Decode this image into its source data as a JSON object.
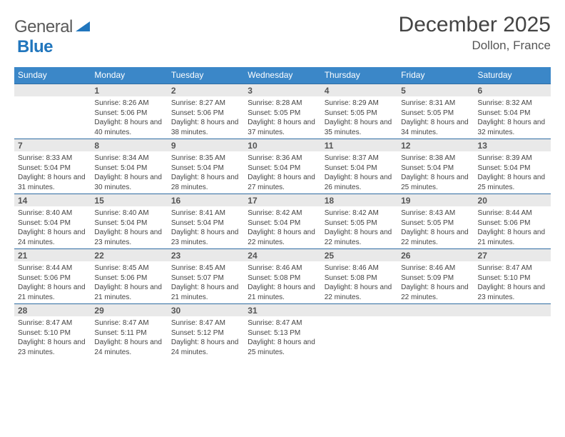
{
  "header": {
    "logo_general": "General",
    "logo_blue": "Blue",
    "month_title": "December 2025",
    "location": "Dollon, France"
  },
  "day_labels": [
    "Sunday",
    "Monday",
    "Tuesday",
    "Wednesday",
    "Thursday",
    "Friday",
    "Saturday"
  ],
  "theme": {
    "header_bg": "#3b87c8",
    "header_fg": "#ffffff",
    "daybar_bg": "#e9e9e9",
    "daybar_border": "#2f6ca3",
    "text_color": "#444444",
    "logo_blue": "#2176bd"
  },
  "weeks": [
    [
      {
        "n": "",
        "sun": "",
        "set": "",
        "day": ""
      },
      {
        "n": "1",
        "sun": "Sunrise: 8:26 AM",
        "set": "Sunset: 5:06 PM",
        "day": "Daylight: 8 hours and 40 minutes."
      },
      {
        "n": "2",
        "sun": "Sunrise: 8:27 AM",
        "set": "Sunset: 5:06 PM",
        "day": "Daylight: 8 hours and 38 minutes."
      },
      {
        "n": "3",
        "sun": "Sunrise: 8:28 AM",
        "set": "Sunset: 5:05 PM",
        "day": "Daylight: 8 hours and 37 minutes."
      },
      {
        "n": "4",
        "sun": "Sunrise: 8:29 AM",
        "set": "Sunset: 5:05 PM",
        "day": "Daylight: 8 hours and 35 minutes."
      },
      {
        "n": "5",
        "sun": "Sunrise: 8:31 AM",
        "set": "Sunset: 5:05 PM",
        "day": "Daylight: 8 hours and 34 minutes."
      },
      {
        "n": "6",
        "sun": "Sunrise: 8:32 AM",
        "set": "Sunset: 5:04 PM",
        "day": "Daylight: 8 hours and 32 minutes."
      }
    ],
    [
      {
        "n": "7",
        "sun": "Sunrise: 8:33 AM",
        "set": "Sunset: 5:04 PM",
        "day": "Daylight: 8 hours and 31 minutes."
      },
      {
        "n": "8",
        "sun": "Sunrise: 8:34 AM",
        "set": "Sunset: 5:04 PM",
        "day": "Daylight: 8 hours and 30 minutes."
      },
      {
        "n": "9",
        "sun": "Sunrise: 8:35 AM",
        "set": "Sunset: 5:04 PM",
        "day": "Daylight: 8 hours and 28 minutes."
      },
      {
        "n": "10",
        "sun": "Sunrise: 8:36 AM",
        "set": "Sunset: 5:04 PM",
        "day": "Daylight: 8 hours and 27 minutes."
      },
      {
        "n": "11",
        "sun": "Sunrise: 8:37 AM",
        "set": "Sunset: 5:04 PM",
        "day": "Daylight: 8 hours and 26 minutes."
      },
      {
        "n": "12",
        "sun": "Sunrise: 8:38 AM",
        "set": "Sunset: 5:04 PM",
        "day": "Daylight: 8 hours and 25 minutes."
      },
      {
        "n": "13",
        "sun": "Sunrise: 8:39 AM",
        "set": "Sunset: 5:04 PM",
        "day": "Daylight: 8 hours and 25 minutes."
      }
    ],
    [
      {
        "n": "14",
        "sun": "Sunrise: 8:40 AM",
        "set": "Sunset: 5:04 PM",
        "day": "Daylight: 8 hours and 24 minutes."
      },
      {
        "n": "15",
        "sun": "Sunrise: 8:40 AM",
        "set": "Sunset: 5:04 PM",
        "day": "Daylight: 8 hours and 23 minutes."
      },
      {
        "n": "16",
        "sun": "Sunrise: 8:41 AM",
        "set": "Sunset: 5:04 PM",
        "day": "Daylight: 8 hours and 23 minutes."
      },
      {
        "n": "17",
        "sun": "Sunrise: 8:42 AM",
        "set": "Sunset: 5:04 PM",
        "day": "Daylight: 8 hours and 22 minutes."
      },
      {
        "n": "18",
        "sun": "Sunrise: 8:42 AM",
        "set": "Sunset: 5:05 PM",
        "day": "Daylight: 8 hours and 22 minutes."
      },
      {
        "n": "19",
        "sun": "Sunrise: 8:43 AM",
        "set": "Sunset: 5:05 PM",
        "day": "Daylight: 8 hours and 22 minutes."
      },
      {
        "n": "20",
        "sun": "Sunrise: 8:44 AM",
        "set": "Sunset: 5:06 PM",
        "day": "Daylight: 8 hours and 21 minutes."
      }
    ],
    [
      {
        "n": "21",
        "sun": "Sunrise: 8:44 AM",
        "set": "Sunset: 5:06 PM",
        "day": "Daylight: 8 hours and 21 minutes."
      },
      {
        "n": "22",
        "sun": "Sunrise: 8:45 AM",
        "set": "Sunset: 5:06 PM",
        "day": "Daylight: 8 hours and 21 minutes."
      },
      {
        "n": "23",
        "sun": "Sunrise: 8:45 AM",
        "set": "Sunset: 5:07 PM",
        "day": "Daylight: 8 hours and 21 minutes."
      },
      {
        "n": "24",
        "sun": "Sunrise: 8:46 AM",
        "set": "Sunset: 5:08 PM",
        "day": "Daylight: 8 hours and 21 minutes."
      },
      {
        "n": "25",
        "sun": "Sunrise: 8:46 AM",
        "set": "Sunset: 5:08 PM",
        "day": "Daylight: 8 hours and 22 minutes."
      },
      {
        "n": "26",
        "sun": "Sunrise: 8:46 AM",
        "set": "Sunset: 5:09 PM",
        "day": "Daylight: 8 hours and 22 minutes."
      },
      {
        "n": "27",
        "sun": "Sunrise: 8:47 AM",
        "set": "Sunset: 5:10 PM",
        "day": "Daylight: 8 hours and 23 minutes."
      }
    ],
    [
      {
        "n": "28",
        "sun": "Sunrise: 8:47 AM",
        "set": "Sunset: 5:10 PM",
        "day": "Daylight: 8 hours and 23 minutes."
      },
      {
        "n": "29",
        "sun": "Sunrise: 8:47 AM",
        "set": "Sunset: 5:11 PM",
        "day": "Daylight: 8 hours and 24 minutes."
      },
      {
        "n": "30",
        "sun": "Sunrise: 8:47 AM",
        "set": "Sunset: 5:12 PM",
        "day": "Daylight: 8 hours and 24 minutes."
      },
      {
        "n": "31",
        "sun": "Sunrise: 8:47 AM",
        "set": "Sunset: 5:13 PM",
        "day": "Daylight: 8 hours and 25 minutes."
      },
      {
        "n": "",
        "sun": "",
        "set": "",
        "day": ""
      },
      {
        "n": "",
        "sun": "",
        "set": "",
        "day": ""
      },
      {
        "n": "",
        "sun": "",
        "set": "",
        "day": ""
      }
    ]
  ]
}
